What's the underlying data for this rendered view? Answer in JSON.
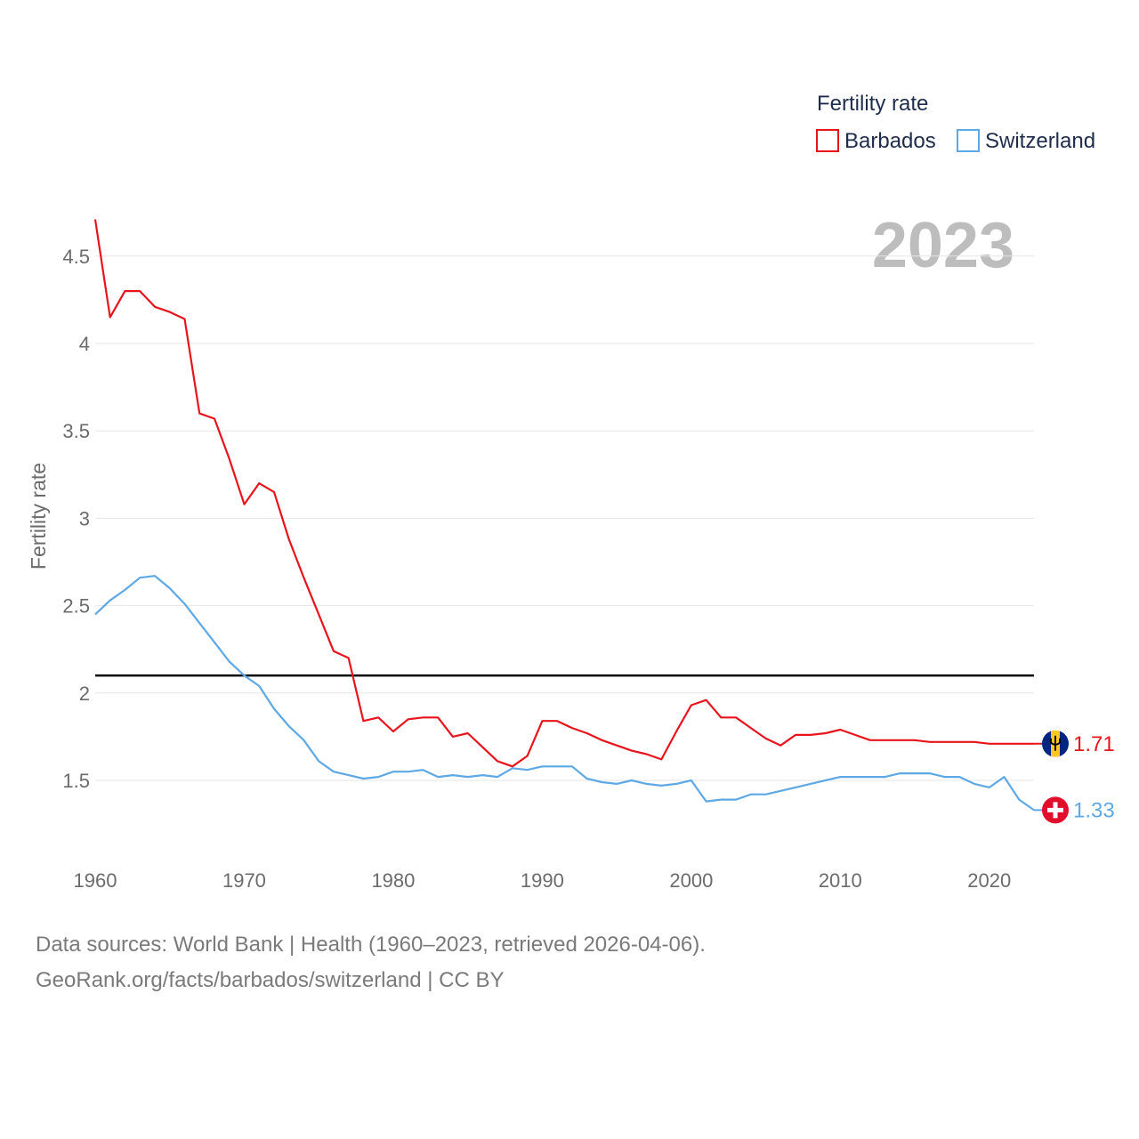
{
  "chart_data": {
    "type": "line",
    "title": "Fertility rate",
    "ylabel": "Fertility rate",
    "xlabel": "",
    "xlim": [
      1960,
      2023
    ],
    "ylim": [
      1.2,
      4.8
    ],
    "x_ticks": [
      1960,
      1970,
      1980,
      1990,
      2000,
      2010,
      2020
    ],
    "y_ticks": [
      1.5,
      2,
      2.5,
      3,
      3.5,
      4,
      4.5
    ],
    "y_tick_labels": [
      "1.5",
      "2",
      "2.5",
      "3",
      "3.5",
      "4",
      "4.5"
    ],
    "reference_line": 2.1,
    "year_label": "2023",
    "legend_position": "top-right",
    "x": [
      1960,
      1961,
      1962,
      1963,
      1964,
      1965,
      1966,
      1967,
      1968,
      1969,
      1970,
      1971,
      1972,
      1973,
      1974,
      1975,
      1976,
      1977,
      1978,
      1979,
      1980,
      1981,
      1982,
      1983,
      1984,
      1985,
      1986,
      1987,
      1988,
      1989,
      1990,
      1991,
      1992,
      1993,
      1994,
      1995,
      1996,
      1997,
      1998,
      1999,
      2000,
      2001,
      2002,
      2003,
      2004,
      2005,
      2006,
      2007,
      2008,
      2009,
      2010,
      2011,
      2012,
      2013,
      2014,
      2015,
      2016,
      2017,
      2018,
      2019,
      2020,
      2021,
      2022,
      2023
    ],
    "series": [
      {
        "name": "Barbados",
        "color": "#e8141c",
        "end_label": "1.71",
        "icon": "barbados-flag-icon",
        "values": [
          4.71,
          4.15,
          4.3,
          4.3,
          4.21,
          4.18,
          4.14,
          3.6,
          3.57,
          3.34,
          3.08,
          3.2,
          3.15,
          2.88,
          2.66,
          2.45,
          2.24,
          2.2,
          1.84,
          1.86,
          1.78,
          1.85,
          1.86,
          1.86,
          1.75,
          1.77,
          1.69,
          1.61,
          1.58,
          1.64,
          1.84,
          1.84,
          1.8,
          1.77,
          1.73,
          1.7,
          1.67,
          1.65,
          1.62,
          1.78,
          1.93,
          1.96,
          1.86,
          1.86,
          1.8,
          1.74,
          1.7,
          1.76,
          1.76,
          1.77,
          1.79,
          1.76,
          1.73,
          1.73,
          1.73,
          1.73,
          1.72,
          1.72,
          1.72,
          1.72,
          1.71,
          1.71,
          1.71,
          1.71
        ]
      },
      {
        "name": "Switzerland",
        "color": "#5ea8e6",
        "end_label": "1.33",
        "icon": "switzerland-flag-icon",
        "values": [
          2.45,
          2.53,
          2.59,
          2.66,
          2.67,
          2.6,
          2.51,
          2.4,
          2.29,
          2.18,
          2.1,
          2.04,
          1.91,
          1.81,
          1.73,
          1.61,
          1.55,
          1.53,
          1.51,
          1.52,
          1.55,
          1.55,
          1.56,
          1.52,
          1.53,
          1.52,
          1.53,
          1.52,
          1.57,
          1.56,
          1.58,
          1.58,
          1.58,
          1.51,
          1.49,
          1.48,
          1.5,
          1.48,
          1.47,
          1.48,
          1.5,
          1.38,
          1.39,
          1.39,
          1.42,
          1.42,
          1.44,
          1.46,
          1.48,
          1.5,
          1.52,
          1.52,
          1.52,
          1.52,
          1.54,
          1.54,
          1.54,
          1.52,
          1.52,
          1.48,
          1.46,
          1.52,
          1.39,
          1.33
        ]
      }
    ]
  },
  "footer": {
    "source_line": "Data sources: World Bank | Health (1960–2023, retrieved 2026-04-06).",
    "credit_line": "GeoRank.org/facts/barbados/switzerland | CC BY"
  }
}
